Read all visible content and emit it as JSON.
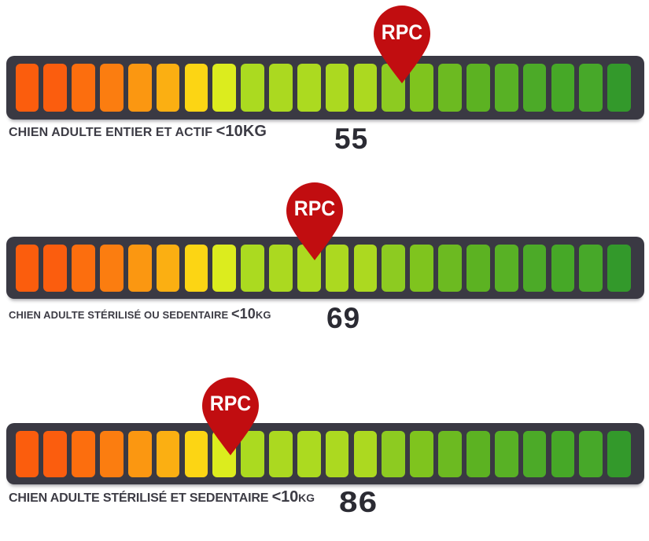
{
  "palette": {
    "page_background": "#ffffff",
    "track_color": "#3a3943",
    "pin_color": "#c10d10",
    "pin_text_color": "#fdfdfd",
    "label_color": "#3d3c45",
    "value_color": "#2b2b33",
    "segment_colors": [
      "#fb5d0d",
      "#fb5d0e",
      "#fc6e0e",
      "#fb7d10",
      "#fb9711",
      "#fbaf12",
      "#fcd514",
      "#dcec1e",
      "#abda20",
      "#abd920",
      "#acda20",
      "#acd920",
      "#acd920",
      "#8dcb21",
      "#7fc41e",
      "#6cba21",
      "#5cb222",
      "#58b125",
      "#4caa28",
      "#46a827",
      "#47a829",
      "#33992b"
    ]
  },
  "marker": {
    "label": "RPC"
  },
  "chart_data": [
    {
      "type": "gauge",
      "title": "CHIEN ADULTE ENTIER ET ACTIF <10KG",
      "marker_label": "RPC",
      "value": 55,
      "segments": 22,
      "scale": "orange (left) to green (right)"
    },
    {
      "type": "gauge",
      "title": "CHIEN ADULTE STÉRILISÉ OU SEDENTAIRE <10KG",
      "marker_label": "RPC",
      "value": 69,
      "segments": 22,
      "scale": "orange (left) to green (right)"
    },
    {
      "type": "gauge",
      "title": "CHIEN ADULTE STÉRILISÉ ET SEDENTAIRE <10KG",
      "marker_label": "RPC",
      "value": 86,
      "segments": 22,
      "scale": "orange (left) to green (right)"
    }
  ],
  "gauges": [
    {
      "label_main": "CHIEN ADULTE ENTIER ET ACTIF ",
      "label_big": "<10KG",
      "label_small": "",
      "value": "55"
    },
    {
      "label_main": "CHIEN ADULTE STÉRILISÉ OU SEDENTAIRE ",
      "label_big": "<10",
      "label_small": "KG",
      "value": "69"
    },
    {
      "label_main": "CHIEN ADULTE STÉRILISÉ ET SEDENTAIRE ",
      "label_big": "<10",
      "label_small": "KG",
      "value": "86"
    }
  ]
}
